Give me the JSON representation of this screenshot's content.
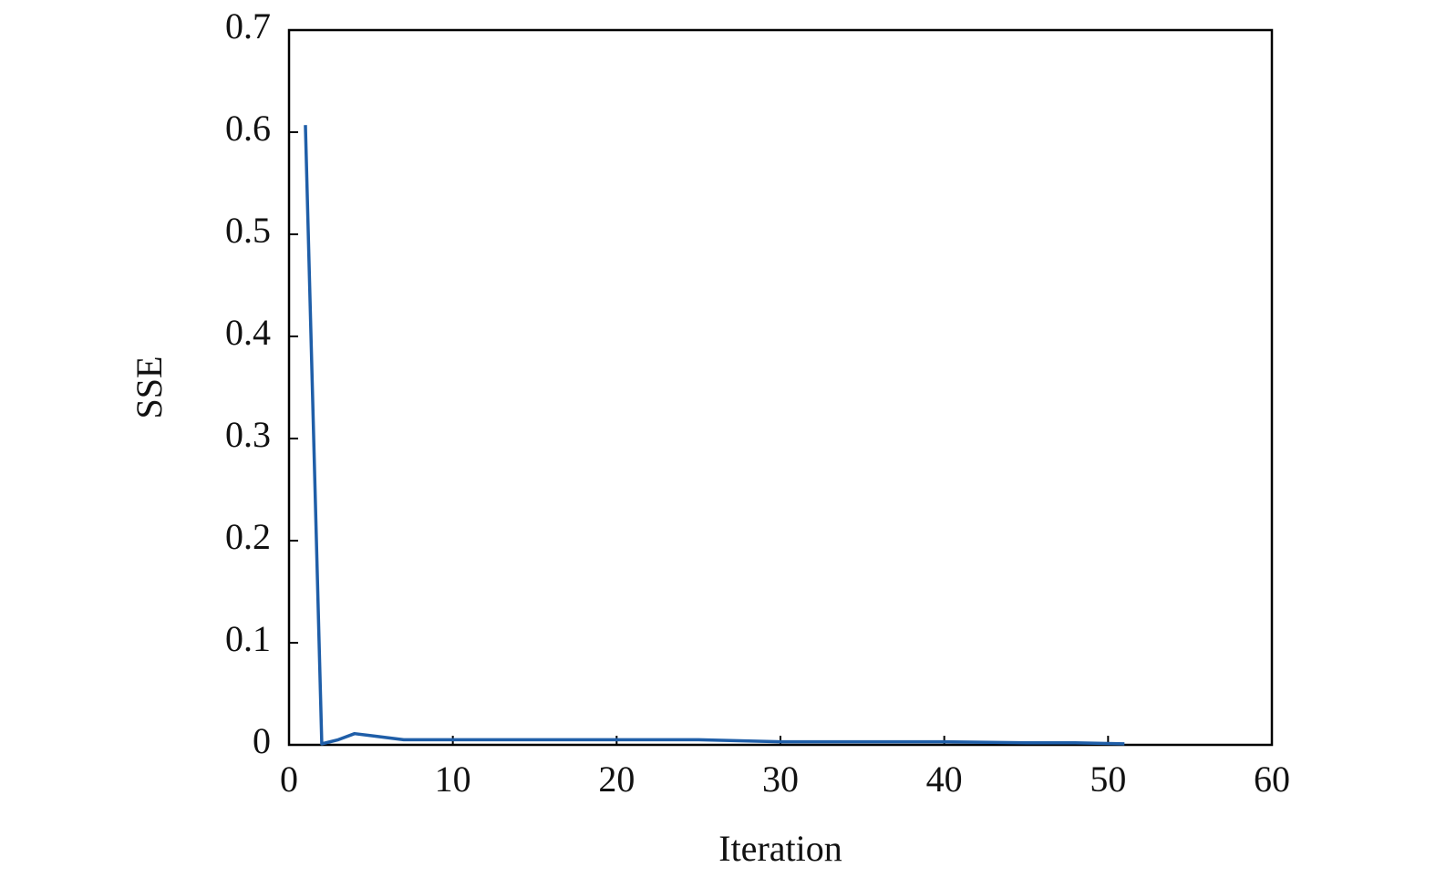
{
  "chart_data": {
    "type": "line",
    "x_label": "Iteration",
    "y_label": "SSE",
    "x": [
      1,
      2,
      3,
      4,
      5,
      6,
      7,
      8,
      10,
      15,
      20,
      25,
      30,
      35,
      40,
      45,
      48,
      51
    ],
    "series": [
      {
        "name": "SSE",
        "color": "#1f5ea8",
        "values": [
          0.607,
          0.001,
          0.005,
          0.011,
          0.009,
          0.007,
          0.005,
          0.005,
          0.005,
          0.005,
          0.005,
          0.005,
          0.003,
          0.003,
          0.003,
          0.002,
          0.002,
          0.001
        ]
      }
    ],
    "xlim": [
      0,
      60
    ],
    "xticks": [
      0,
      10,
      20,
      30,
      40,
      50,
      60
    ],
    "ylim": [
      0,
      0.7
    ],
    "yticks": [
      0,
      0.1,
      0.2,
      0.3,
      0.4,
      0.5,
      0.6,
      0.7
    ],
    "grid": false
  }
}
